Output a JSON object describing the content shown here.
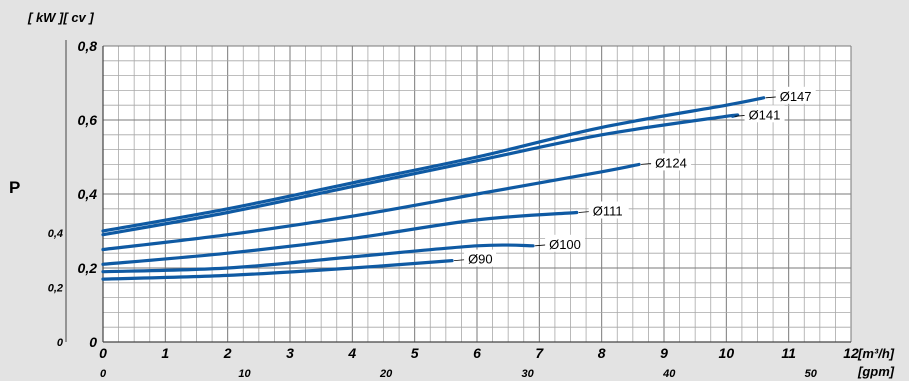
{
  "chart_data": {
    "type": "line",
    "ylabel": "P",
    "y_unit_label": "[ kW ][ cv ]",
    "x_unit_primary": "[m³/h]",
    "x_unit_secondary": "[gpm]",
    "xlim": [
      0,
      12
    ],
    "ylim": [
      0,
      0.8
    ],
    "grid": true,
    "x_ticks": [
      "0",
      "1",
      "2",
      "3",
      "4",
      "5",
      "6",
      "7",
      "8",
      "9",
      "10",
      "11",
      "12"
    ],
    "x_ticks_gpm": [
      {
        "label": "0",
        "value": 0
      },
      {
        "label": "10",
        "value": 10
      },
      {
        "label": "20",
        "value": 20
      },
      {
        "label": "30",
        "value": 30
      },
      {
        "label": "40",
        "value": 40
      },
      {
        "label": "50",
        "value": 50
      }
    ],
    "y_ticks_kw": [
      {
        "label": "0",
        "value": 0
      },
      {
        "label": "0,2",
        "value": 0.2
      },
      {
        "label": "0,4",
        "value": 0.4
      },
      {
        "label": "0,6",
        "value": 0.6
      },
      {
        "label": "0,8",
        "value": 0.8
      }
    ],
    "y_ticks_cv": [
      {
        "label": "0",
        "value": 0
      },
      {
        "label": "0,2",
        "value": 0.2
      },
      {
        "label": "0,4",
        "value": 0.4
      }
    ],
    "series": [
      {
        "name": "Ø147",
        "x": [
          0,
          2,
          4,
          6,
          8,
          10,
          10.6
        ],
        "y": [
          0.3,
          0.36,
          0.43,
          0.5,
          0.58,
          0.64,
          0.66
        ]
      },
      {
        "name": "Ø141",
        "x": [
          0,
          2,
          4,
          6,
          8,
          10,
          10.1
        ],
        "y": [
          0.29,
          0.35,
          0.42,
          0.49,
          0.56,
          0.61,
          0.61
        ]
      },
      {
        "name": "Ø124",
        "x": [
          0,
          2,
          4,
          6,
          8,
          8.6
        ],
        "y": [
          0.25,
          0.29,
          0.34,
          0.4,
          0.46,
          0.48
        ]
      },
      {
        "name": "Ø111",
        "x": [
          0,
          2,
          4,
          6,
          7.6
        ],
        "y": [
          0.21,
          0.24,
          0.28,
          0.33,
          0.35
        ]
      },
      {
        "name": "Ø100",
        "x": [
          0,
          2,
          4,
          6,
          6.9
        ],
        "y": [
          0.19,
          0.2,
          0.23,
          0.26,
          0.26
        ]
      },
      {
        "name": "Ø90",
        "x": [
          0,
          2,
          4,
          5.6
        ],
        "y": [
          0.17,
          0.18,
          0.2,
          0.22
        ]
      }
    ]
  }
}
